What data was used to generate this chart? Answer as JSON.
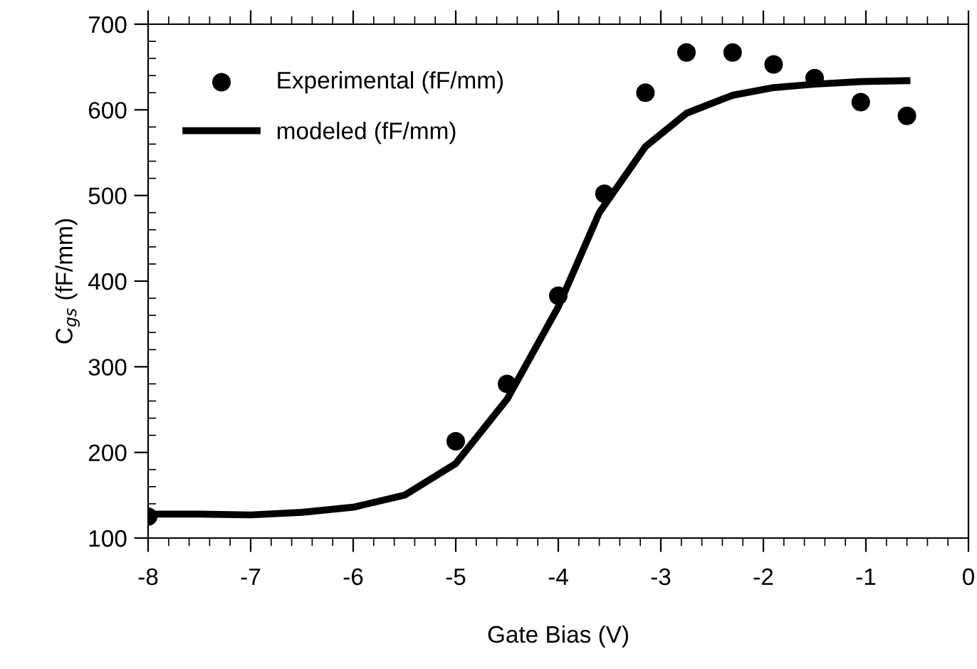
{
  "chart_data": {
    "type": "scatter",
    "xlabel": "Gate Bias (V)",
    "ylabel": "C$_{gs}$ (fF/mm)",
    "xlim": [
      -8,
      0
    ],
    "xticks": [
      -8,
      -7,
      -6,
      -5,
      -4,
      -3,
      -2,
      -1,
      0
    ],
    "ylim": [
      100,
      700
    ],
    "yticks": [
      100,
      200,
      300,
      400,
      500,
      600,
      700
    ],
    "grid": false,
    "legend": "top left",
    "series": [
      {
        "name": "Experimental (fF/mm)",
        "marker": "circle",
        "color": "#000000",
        "x": [
          -8,
          -5,
          -4.5,
          -4,
          -3.55,
          -3.15,
          -2.75,
          -2.3,
          -1.9,
          -1.5,
          -1.05,
          -0.6
        ],
        "values": [
          125,
          213,
          280,
          383,
          502,
          620,
          667,
          667,
          653,
          637,
          609,
          593
        ]
      },
      {
        "name": "modeled (fF/mm)",
        "type": "line",
        "marker": "none",
        "line_style": "solid",
        "color": "#000000",
        "x": [
          -8,
          -7.5,
          -7,
          -6.5,
          -6,
          -5.5,
          -5,
          -4.5,
          -4,
          -3.6,
          -3.15,
          -2.75,
          -2.3,
          -1.9,
          -1.5,
          -1.05,
          -0.6
        ],
        "values": [
          128,
          128,
          127,
          130,
          136,
          150,
          187,
          262,
          370,
          480,
          557,
          596,
          617,
          626,
          630,
          633,
          634
        ]
      }
    ]
  }
}
